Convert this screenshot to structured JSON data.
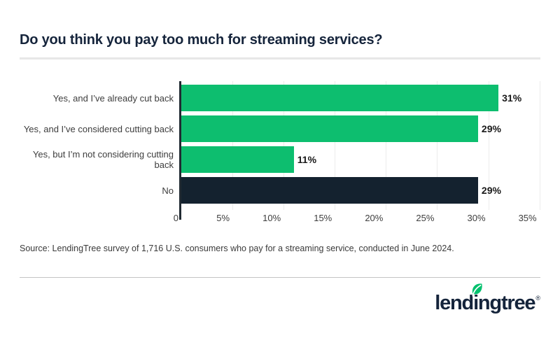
{
  "page": {
    "source": "Source: LendingTree survey of 1,716 U.S. consumers who pay for a streaming service, conducted in June 2024.",
    "logo": {
      "full_text": "lendingtree",
      "part1": "lend",
      "part2": "i",
      "part3": "ngtree",
      "registered": "®",
      "leaf_color": "#00c06d",
      "text_color": "#15243b"
    }
  },
  "chart_data": {
    "type": "bar",
    "orientation": "horizontal",
    "title": "Do you think you pay too much for streaming services?",
    "categories": [
      "Yes, and I’ve already cut back",
      "Yes, and I’ve considered cutting back",
      "Yes, but I’m not considering cutting back",
      "No"
    ],
    "values": [
      31,
      29,
      11,
      29
    ],
    "value_labels": [
      "31%",
      "29%",
      "11%",
      "29%"
    ],
    "bar_colors": [
      "#0dbe6f",
      "#0dbe6f",
      "#0dbe6f",
      "#14222f"
    ],
    "x_ticks": [
      {
        "value": 0,
        "label": "0"
      },
      {
        "value": 5,
        "label": "5%"
      },
      {
        "value": 10,
        "label": "10%"
      },
      {
        "value": 15,
        "label": "15%"
      },
      {
        "value": 20,
        "label": "20%"
      },
      {
        "value": 25,
        "label": "25%"
      },
      {
        "value": 30,
        "label": "30%"
      },
      {
        "value": 35,
        "label": "35%"
      }
    ],
    "xlim": [
      0,
      35.3
    ],
    "xlabel": "",
    "ylabel": "",
    "grid": true,
    "gridline_color": "#ececec",
    "axis_line_color": "#222b33",
    "legend": "none"
  }
}
